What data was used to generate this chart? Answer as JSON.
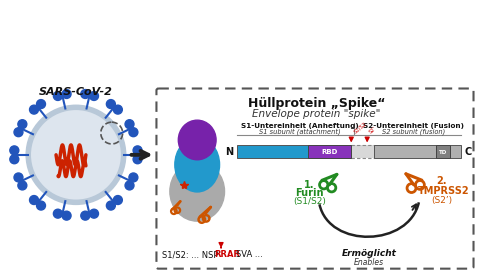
{
  "title_de": "Hüllprotein „Spike“",
  "title_en": "Envelope protein \"spike\"",
  "sars_label": "SARS-CoV-2",
  "s1_label_de": "S1-Untereinheit (Anheftung)",
  "s1_label_en": "S1 subunit (attachment)",
  "s2_label_de": "S2-Untereinheit (Fusion)",
  "s2_label_en": "S2 subunit (fusion)",
  "n_label": "N",
  "c_label": "C",
  "rbd_label": "RBD",
  "td_label": "TD",
  "furin_num": "1.",
  "furin_name": "Furin",
  "furin_sub": "(S1/S2)",
  "tmprss2_num": "2.",
  "tmprss2_name": "TMPRSS2",
  "tmprss2_sub": "(S2’)",
  "enables_de": "Ermöglicht",
  "enables_en": "Enables",
  "seq_prefix": "S1/S2: ... NSP",
  "seq_rrar": "RRAR",
  "seq_suffix": "SVA ...",
  "bg_color": "#ffffff",
  "virus_body_color": "#dde5ee",
  "virus_ring_color": "#b8c8d8",
  "rna_color": "#cc2200",
  "spike_color": "#2255bb",
  "cyan_color": "#2299cc",
  "purple_color": "#8833bb",
  "gray_s2_color": "#b0b0b0",
  "gray_dashed_color": "#cccccc",
  "td_color": "#808080",
  "furin_color": "#228B22",
  "tmprss2_color": "#cc5500",
  "arrow_dark": "#222222",
  "cleavage_color": "#cc0000",
  "text_dark": "#111111",
  "text_mid": "#333333"
}
